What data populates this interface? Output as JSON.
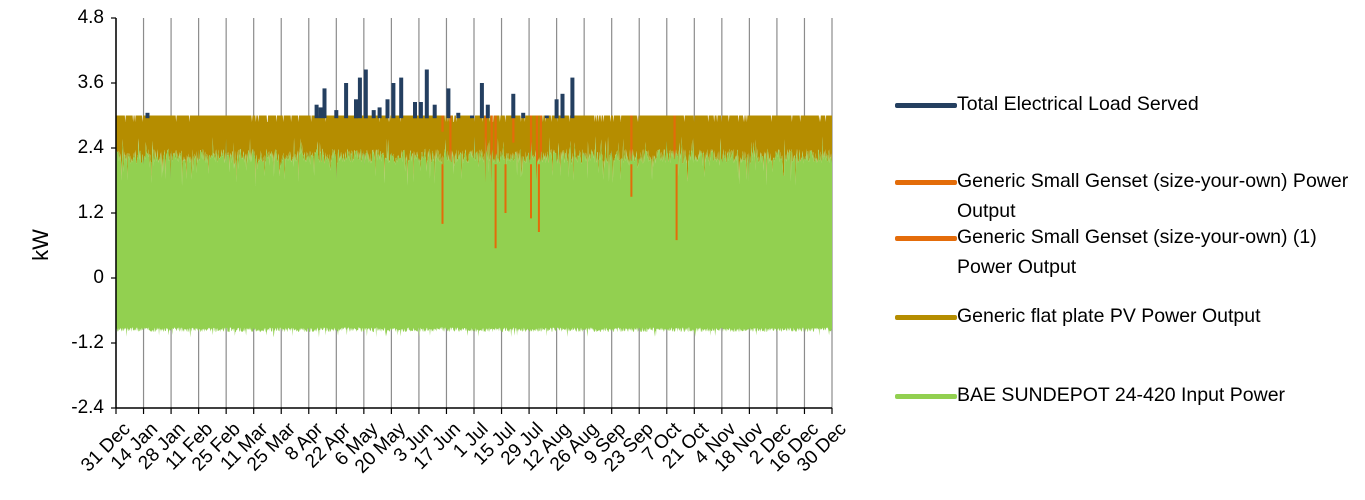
{
  "chart_data": {
    "type": "line",
    "title": "",
    "xlabel": "",
    "ylabel": "kW",
    "ylim": [
      -2.4,
      4.8
    ],
    "yticks": [
      "4.8",
      "3.6",
      "2.4",
      "1.2",
      "0",
      "-1.2",
      "-2.4"
    ],
    "ytick_values": [
      4.8,
      3.6,
      2.4,
      1.2,
      0,
      -1.2,
      -2.4
    ],
    "xticks": [
      "31 Dec",
      "14 Jan",
      "28 Jan",
      "11 Feb",
      "25 Feb",
      "11 Mar",
      "25 Mar",
      "8 Apr",
      "22 Apr",
      "6 May",
      "20 May",
      "3 Jun",
      "17 Jun",
      "1 Jul",
      "15 Jul",
      "29 Jul",
      "12 Aug",
      "26 Aug",
      "9 Sep",
      "23 Sep",
      "7 Oct",
      "21 Oct",
      "4 Nov",
      "18 Nov",
      "2 Dec",
      "16 Dec",
      "30 Dec"
    ],
    "grid": "vertical",
    "legend_position": "right",
    "series": [
      {
        "name": "Total Electrical Load Served",
        "color": "#243f60",
        "approx_range": [
          2.4,
          3.85
        ],
        "peaks": [
          {
            "x": "16 Jan",
            "y": 3.05
          },
          {
            "x": "12 Apr",
            "y": 3.2
          },
          {
            "x": "14 Apr",
            "y": 3.15
          },
          {
            "x": "16 Apr",
            "y": 3.5
          },
          {
            "x": "22 Apr",
            "y": 3.1
          },
          {
            "x": "27 Apr",
            "y": 3.6
          },
          {
            "x": "2 May",
            "y": 3.3
          },
          {
            "x": "4 May",
            "y": 3.7
          },
          {
            "x": "7 May",
            "y": 3.85
          },
          {
            "x": "11 May",
            "y": 3.1
          },
          {
            "x": "14 May",
            "y": 3.15
          },
          {
            "x": "18 May",
            "y": 3.3
          },
          {
            "x": "21 May",
            "y": 3.6
          },
          {
            "x": "25 May",
            "y": 3.7
          },
          {
            "x": "1 Jun",
            "y": 3.25
          },
          {
            "x": "4 Jun",
            "y": 3.25
          },
          {
            "x": "7 Jun",
            "y": 3.85
          },
          {
            "x": "11 Jun",
            "y": 3.2
          },
          {
            "x": "18 Jun",
            "y": 3.5
          },
          {
            "x": "23 Jun",
            "y": 3.05
          },
          {
            "x": "30 Jun",
            "y": 3.0
          },
          {
            "x": "5 Jul",
            "y": 3.6
          },
          {
            "x": "8 Jul",
            "y": 3.2
          },
          {
            "x": "21 Jul",
            "y": 3.4
          },
          {
            "x": "26 Jul",
            "y": 3.05
          },
          {
            "x": "1 Aug",
            "y": 2.95
          },
          {
            "x": "7 Aug",
            "y": 3.0
          },
          {
            "x": "12 Aug",
            "y": 3.3
          },
          {
            "x": "15 Aug",
            "y": 3.4
          },
          {
            "x": "20 Aug",
            "y": 3.7
          },
          {
            "x": "4 Sep",
            "y": 2.8
          }
        ]
      },
      {
        "name": "Generic Small Genset (size-your-own) Power Output",
        "color": "#e36c09",
        "approx_range": [
          0,
          3.0
        ]
      },
      {
        "name": "Generic Small Genset (size-your-own) (1) Power Output",
        "color": "#e46c0a",
        "approx_range": [
          0.55,
          3.0
        ]
      },
      {
        "name": "Generic flat plate PV Power Output",
        "color": "#b58d00",
        "approx_range": [
          1.6,
          3.0
        ]
      },
      {
        "name": "BAE SUNDEPOT 24-420 Input Power",
        "color": "#92d050",
        "approx_range": [
          -1.05,
          2.55
        ]
      }
    ]
  }
}
